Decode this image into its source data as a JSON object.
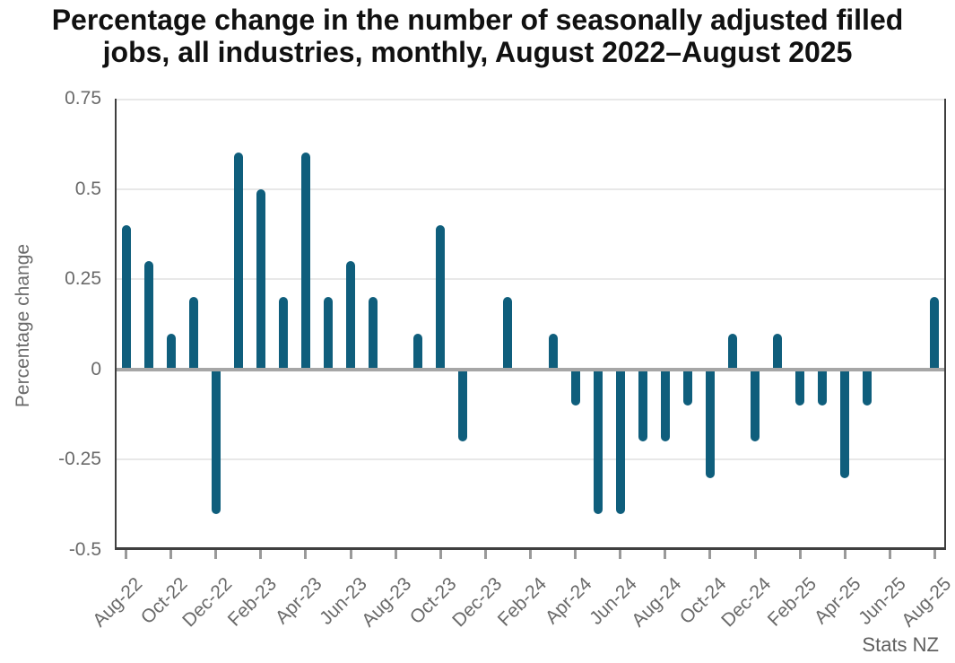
{
  "title": "Percentage change in the number of seasonally adjusted filled jobs, all industries, monthly, August 2022–August 2025",
  "source": "Stats NZ",
  "chart_data": {
    "type": "bar",
    "title": "Percentage change in the number of seasonally adjusted filled jobs, all industries, monthly, August 2022–August 2025",
    "xlabel": "",
    "ylabel": "Percentage change",
    "ylim": [
      -0.5,
      0.75
    ],
    "ytick_values": [
      0.75,
      0.5,
      0.25,
      0,
      -0.25,
      -0.5
    ],
    "ytick_labels": [
      "0.75",
      "0.5",
      "0.25",
      "0",
      "-0.25",
      "-0.5"
    ],
    "grid": true,
    "legend": "none",
    "xtick_label_every": 2,
    "categories": [
      "Aug-22",
      "Sep-22",
      "Oct-22",
      "Nov-22",
      "Dec-22",
      "Jan-23",
      "Feb-23",
      "Mar-23",
      "Apr-23",
      "May-23",
      "Jun-23",
      "Jul-23",
      "Aug-23",
      "Sep-23",
      "Oct-23",
      "Nov-23",
      "Dec-23",
      "Jan-24",
      "Feb-24",
      "Mar-24",
      "Apr-24",
      "May-24",
      "Jun-24",
      "Jul-24",
      "Aug-24",
      "Sep-24",
      "Oct-24",
      "Nov-24",
      "Dec-24",
      "Jan-25",
      "Feb-25",
      "Mar-25",
      "Apr-25",
      "May-25",
      "Jun-25",
      "Jul-25",
      "Aug-25"
    ],
    "values": [
      0.4,
      0.3,
      0.1,
      0.2,
      -0.4,
      0.6,
      0.5,
      0.2,
      0.6,
      0.2,
      0.3,
      0.2,
      0,
      0.1,
      0.4,
      -0.2,
      0,
      0.2,
      0,
      0.1,
      -0.1,
      -0.4,
      -0.4,
      -0.2,
      -0.2,
      -0.1,
      -0.3,
      0.1,
      -0.2,
      0.1,
      -0.1,
      -0.1,
      -0.3,
      -0.1,
      0,
      0,
      0.2
    ],
    "colors": {
      "bar": "#0f5e7c",
      "zero_line": "#a6a6a6",
      "gridline": "#e8e8e8",
      "axis_border": "#3f3f3f",
      "tick_mark": "#9a9a9a",
      "tick_label": "#6a6a6a",
      "title": "#111111"
    }
  }
}
